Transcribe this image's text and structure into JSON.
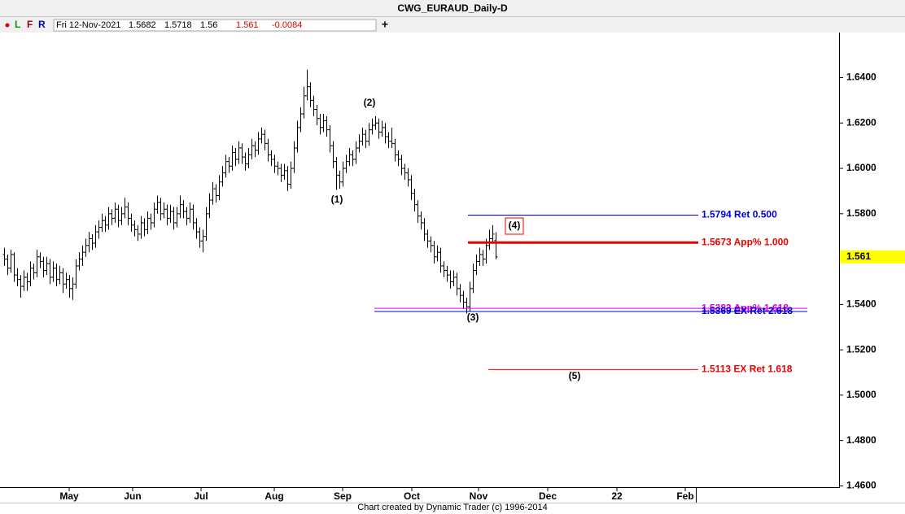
{
  "chart_data": {
    "type": "ohlc",
    "title": "CWG_EURAUD_Daily-D",
    "toolbar": [
      "L",
      "F",
      "R"
    ],
    "info_date": "Fri 12-Nov-2021",
    "info_change": "-0.0084",
    "footer": "Chart created by Dynamic Trader  (c)  1996-2014",
    "ylim": [
      1.4598,
      1.6599
    ],
    "yticks": [
      {
        "value": 1.64,
        "label": "1.6400"
      },
      {
        "value": 1.62,
        "label": "1.6200"
      },
      {
        "value": 1.6,
        "label": "1.6000"
      },
      {
        "value": 1.58,
        "label": "1.5800"
      },
      {
        "value": 1.56,
        "label": "1.5600"
      },
      {
        "value": 1.54,
        "label": "1.5400"
      },
      {
        "value": 1.52,
        "label": "1.5200"
      },
      {
        "value": 1.5,
        "label": "1.5000"
      },
      {
        "value": 1.48,
        "label": "1.4800"
      },
      {
        "value": 1.46,
        "label": "1.4600"
      }
    ],
    "xlim": [
      -1.25,
      256.25
    ],
    "xticks": [
      {
        "value": 20,
        "label": "May"
      },
      {
        "value": 39.5,
        "label": "Jun"
      },
      {
        "value": 60.5,
        "label": "Jul"
      },
      {
        "value": 83,
        "label": "Aug"
      },
      {
        "value": 104,
        "label": "Sep"
      },
      {
        "value": 125.25,
        "label": "Oct"
      },
      {
        "value": 145.75,
        "label": "Nov"
      },
      {
        "value": 167,
        "label": "Dec"
      },
      {
        "value": 188.25,
        "label": "22"
      },
      {
        "value": 209.25,
        "label": "Feb"
      }
    ],
    "bars": [
      [
        1.562,
        1.565,
        1.557,
        1.56
      ],
      [
        1.56,
        1.562,
        1.553,
        1.556
      ],
      [
        1.556,
        1.564,
        1.554,
        1.562
      ],
      [
        1.562,
        1.563,
        1.55,
        1.553
      ],
      [
        1.553,
        1.556,
        1.548,
        1.551
      ],
      [
        1.551,
        1.553,
        1.543,
        1.548
      ],
      [
        1.548,
        1.555,
        1.546,
        1.552
      ],
      [
        1.552,
        1.554,
        1.546,
        1.55
      ],
      [
        1.55,
        1.559,
        1.548,
        1.556
      ],
      [
        1.556,
        1.558,
        1.551,
        1.554
      ],
      [
        1.554,
        1.564,
        1.552,
        1.561
      ],
      [
        1.561,
        1.563,
        1.556,
        1.559
      ],
      [
        1.559,
        1.561,
        1.552,
        1.555
      ],
      [
        1.555,
        1.561,
        1.553,
        1.558
      ],
      [
        1.558,
        1.56,
        1.549,
        1.552
      ],
      [
        1.552,
        1.559,
        1.55,
        1.556
      ],
      [
        1.556,
        1.558,
        1.548,
        1.551
      ],
      [
        1.551,
        1.557,
        1.549,
        1.554
      ],
      [
        1.554,
        1.556,
        1.545,
        1.549
      ],
      [
        1.549,
        1.554,
        1.547,
        1.551
      ],
      [
        1.551,
        1.553,
        1.543,
        1.547
      ],
      [
        1.547,
        1.552,
        1.542,
        1.549
      ],
      [
        1.549,
        1.56,
        1.547,
        1.557
      ],
      [
        1.557,
        1.563,
        1.555,
        1.56
      ],
      [
        1.56,
        1.566,
        1.557,
        1.563
      ],
      [
        1.563,
        1.569,
        1.561,
        1.566
      ],
      [
        1.566,
        1.572,
        1.563,
        1.569
      ],
      [
        1.569,
        1.571,
        1.564,
        1.567
      ],
      [
        1.567,
        1.575,
        1.565,
        1.572
      ],
      [
        1.572,
        1.577,
        1.569,
        1.574
      ],
      [
        1.574,
        1.58,
        1.572,
        1.577
      ],
      [
        1.577,
        1.579,
        1.572,
        1.575
      ],
      [
        1.575,
        1.583,
        1.573,
        1.58
      ],
      [
        1.58,
        1.582,
        1.575,
        1.578
      ],
      [
        1.578,
        1.585,
        1.576,
        1.582
      ],
      [
        1.582,
        1.584,
        1.574,
        1.577
      ],
      [
        1.577,
        1.583,
        1.575,
        1.58
      ],
      [
        1.58,
        1.587,
        1.578,
        1.583
      ],
      [
        1.583,
        1.585,
        1.575,
        1.578
      ],
      [
        1.578,
        1.58,
        1.572,
        1.575
      ],
      [
        1.575,
        1.577,
        1.57,
        1.573
      ],
      [
        1.573,
        1.575,
        1.568,
        1.571
      ],
      [
        1.571,
        1.579,
        1.569,
        1.576
      ],
      [
        1.576,
        1.578,
        1.57,
        1.573
      ],
      [
        1.573,
        1.581,
        1.571,
        1.578
      ],
      [
        1.578,
        1.58,
        1.573,
        1.576
      ],
      [
        1.576,
        1.585,
        1.574,
        1.582
      ],
      [
        1.582,
        1.588,
        1.58,
        1.585
      ],
      [
        1.585,
        1.587,
        1.577,
        1.58
      ],
      [
        1.58,
        1.585,
        1.578,
        1.582
      ],
      [
        1.582,
        1.584,
        1.575,
        1.578
      ],
      [
        1.578,
        1.584,
        1.576,
        1.581
      ],
      [
        1.581,
        1.583,
        1.573,
        1.576
      ],
      [
        1.576,
        1.583,
        1.574,
        1.58
      ],
      [
        1.58,
        1.588,
        1.578,
        1.584
      ],
      [
        1.584,
        1.586,
        1.578,
        1.581
      ],
      [
        1.581,
        1.583,
        1.575,
        1.578
      ],
      [
        1.578,
        1.585,
        1.576,
        1.582
      ],
      [
        1.582,
        1.584,
        1.573,
        1.576
      ],
      [
        1.576,
        1.578,
        1.569,
        1.572
      ],
      [
        1.572,
        1.574,
        1.565,
        1.568
      ],
      [
        1.568,
        1.573,
        1.563,
        1.57
      ],
      [
        1.57,
        1.583,
        1.568,
        1.58
      ],
      [
        1.58,
        1.589,
        1.578,
        1.586
      ],
      [
        1.586,
        1.594,
        1.584,
        1.591
      ],
      [
        1.591,
        1.593,
        1.585,
        1.588
      ],
      [
        1.588,
        1.597,
        1.586,
        1.594
      ],
      [
        1.594,
        1.601,
        1.592,
        1.598
      ],
      [
        1.598,
        1.606,
        1.596,
        1.603
      ],
      [
        1.603,
        1.605,
        1.598,
        1.601
      ],
      [
        1.601,
        1.61,
        1.599,
        1.607
      ],
      [
        1.607,
        1.609,
        1.601,
        1.604
      ],
      [
        1.604,
        1.612,
        1.602,
        1.609
      ],
      [
        1.609,
        1.611,
        1.602,
        1.605
      ],
      [
        1.605,
        1.607,
        1.599,
        1.602
      ],
      [
        1.602,
        1.609,
        1.6,
        1.606
      ],
      [
        1.606,
        1.613,
        1.604,
        1.61
      ],
      [
        1.61,
        1.612,
        1.605,
        1.608
      ],
      [
        1.608,
        1.616,
        1.606,
        1.613
      ],
      [
        1.613,
        1.618,
        1.611,
        1.615
      ],
      [
        1.615,
        1.617,
        1.608,
        1.611
      ],
      [
        1.611,
        1.613,
        1.603,
        1.606
      ],
      [
        1.606,
        1.608,
        1.601,
        1.604
      ],
      [
        1.604,
        1.606,
        1.598,
        1.601
      ],
      [
        1.601,
        1.603,
        1.597,
        1.6
      ],
      [
        1.6,
        1.602,
        1.594,
        1.597
      ],
      [
        1.597,
        1.602,
        1.595,
        1.599
      ],
      [
        1.599,
        1.601,
        1.59,
        1.593
      ],
      [
        1.593,
        1.603,
        1.591,
        1.6
      ],
      [
        1.6,
        1.612,
        1.598,
        1.609
      ],
      [
        1.609,
        1.621,
        1.607,
        1.618
      ],
      [
        1.618,
        1.627,
        1.616,
        1.624
      ],
      [
        1.624,
        1.636,
        1.622,
        1.632
      ],
      [
        1.632,
        1.6435,
        1.63,
        1.636
      ],
      [
        1.636,
        1.638,
        1.627,
        1.63
      ],
      [
        1.63,
        1.632,
        1.623,
        1.626
      ],
      [
        1.626,
        1.628,
        1.619,
        1.622
      ],
      [
        1.622,
        1.624,
        1.615,
        1.618
      ],
      [
        1.618,
        1.624,
        1.616,
        1.621
      ],
      [
        1.621,
        1.623,
        1.614,
        1.617
      ],
      [
        1.617,
        1.619,
        1.607,
        1.61
      ],
      [
        1.61,
        1.612,
        1.6,
        1.603
      ],
      [
        1.603,
        1.605,
        1.5905,
        1.597
      ],
      [
        1.597,
        1.599,
        1.591,
        1.594
      ],
      [
        1.594,
        1.603,
        1.592,
        1.6
      ],
      [
        1.6,
        1.606,
        1.598,
        1.603
      ],
      [
        1.603,
        1.609,
        1.601,
        1.606
      ],
      [
        1.606,
        1.608,
        1.601,
        1.604
      ],
      [
        1.604,
        1.612,
        1.602,
        1.609
      ],
      [
        1.609,
        1.615,
        1.607,
        1.612
      ],
      [
        1.612,
        1.618,
        1.61,
        1.615
      ],
      [
        1.615,
        1.617,
        1.609,
        1.612
      ],
      [
        1.612,
        1.62,
        1.61,
        1.617
      ],
      [
        1.617,
        1.622,
        1.615,
        1.619
      ],
      [
        1.619,
        1.623,
        1.617,
        1.62
      ],
      [
        1.62,
        1.622,
        1.613,
        1.616
      ],
      [
        1.616,
        1.621,
        1.614,
        1.618
      ],
      [
        1.618,
        1.62,
        1.611,
        1.614
      ],
      [
        1.614,
        1.616,
        1.609,
        1.612
      ],
      [
        1.612,
        1.618,
        1.609,
        1.611
      ],
      [
        1.611,
        1.613,
        1.603,
        1.606
      ],
      [
        1.606,
        1.608,
        1.601,
        1.604
      ],
      [
        1.604,
        1.606,
        1.597,
        1.6
      ],
      [
        1.6,
        1.602,
        1.595,
        1.598
      ],
      [
        1.598,
        1.6,
        1.592,
        1.595
      ],
      [
        1.595,
        1.597,
        1.586,
        1.589
      ],
      [
        1.589,
        1.591,
        1.581,
        1.584
      ],
      [
        1.584,
        1.586,
        1.576,
        1.579
      ],
      [
        1.579,
        1.581,
        1.573,
        1.576
      ],
      [
        1.576,
        1.578,
        1.568,
        1.571
      ],
      [
        1.571,
        1.573,
        1.565,
        1.568
      ],
      [
        1.568,
        1.57,
        1.563,
        1.566
      ],
      [
        1.566,
        1.568,
        1.558,
        1.561
      ],
      [
        1.561,
        1.566,
        1.559,
        1.563
      ],
      [
        1.563,
        1.565,
        1.554,
        1.557
      ],
      [
        1.557,
        1.559,
        1.552,
        1.555
      ],
      [
        1.555,
        1.557,
        1.55,
        1.553
      ],
      [
        1.553,
        1.555,
        1.547,
        1.55
      ],
      [
        1.55,
        1.555,
        1.548,
        1.552
      ],
      [
        1.552,
        1.554,
        1.544,
        1.547
      ],
      [
        1.547,
        1.549,
        1.541,
        1.544
      ],
      [
        1.544,
        1.546,
        1.538,
        1.541
      ],
      [
        1.541,
        1.543,
        1.536,
        1.539
      ],
      [
        1.539,
        1.55,
        1.537,
        1.547
      ],
      [
        1.547,
        1.558,
        1.545,
        1.555
      ],
      [
        1.555,
        1.562,
        1.553,
        1.559
      ],
      [
        1.559,
        1.565,
        1.557,
        1.562
      ],
      [
        1.562,
        1.564,
        1.557,
        1.56
      ],
      [
        1.56,
        1.569,
        1.558,
        1.566
      ],
      [
        1.566,
        1.573,
        1.564,
        1.569
      ],
      [
        1.569,
        1.575,
        1.567,
        1.571
      ],
      [
        1.5682,
        1.5718,
        1.56,
        1.561
      ]
    ],
    "levels": [
      {
        "value": 1.5794,
        "label": "1.5794 Ret 0.500",
        "color": "#0000dd"
      },
      {
        "value": 1.5673,
        "label": "1.5673 App% 1.000",
        "color": "#ee0000"
      },
      {
        "value": 1.5383,
        "label": "1.5383 App% 1.618",
        "color": "#dd00dd"
      },
      {
        "value": 1.5369,
        "label": "1.5369 EX Ret 2.618",
        "color": "#0000dd"
      },
      {
        "value": 1.5113,
        "label": "1.5113 EX Ret 1.618",
        "color": "#ee0000"
      }
    ],
    "annotations": [
      "(1)",
      "(2)",
      "(3)",
      "(4)",
      "(5)"
    ]
  }
}
